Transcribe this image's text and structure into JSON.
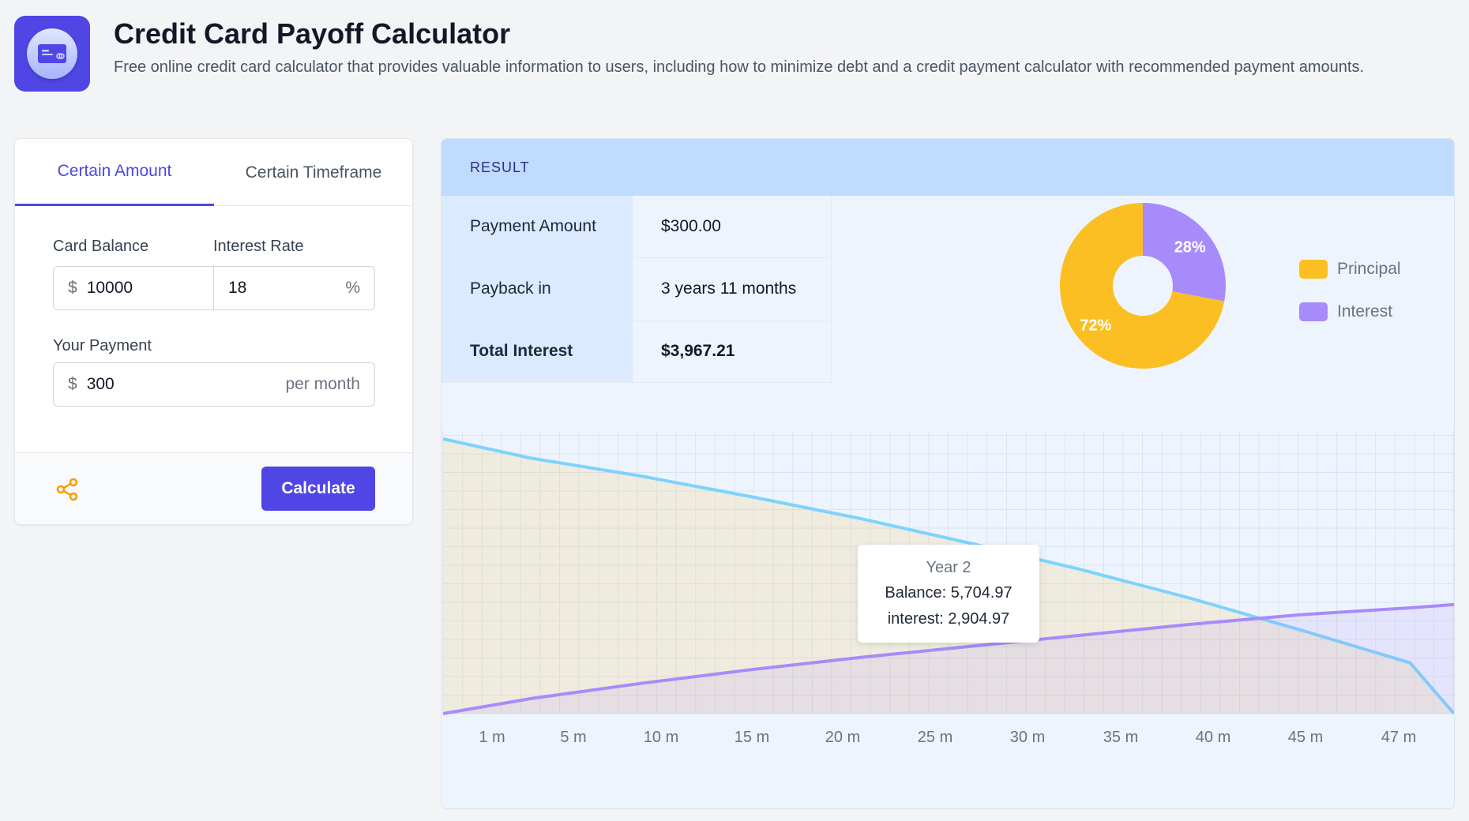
{
  "header": {
    "title": "Credit Card Payoff Calculator",
    "subtitle": "Free online credit card calculator that provides valuable information to users, including how to minimize debt and a credit payment calculator with recommended payment amounts."
  },
  "tabs": [
    {
      "label": "Certain Amount",
      "active": true
    },
    {
      "label": "Certain Timeframe",
      "active": false
    }
  ],
  "form": {
    "card_balance_label": "Card Balance",
    "card_balance_prefix": "$",
    "card_balance_value": "10000",
    "interest_rate_label": "Interest Rate",
    "interest_rate_value": "18",
    "interest_rate_suffix": "%",
    "payment_label": "Your Payment",
    "payment_prefix": "$",
    "payment_value": "300",
    "payment_suffix": "per month",
    "calculate_label": "Calculate"
  },
  "result": {
    "heading": "RESULT",
    "rows": [
      {
        "label": "Payment Amount",
        "value": "$300.00"
      },
      {
        "label": "Payback in",
        "value": "3 years 11 months"
      },
      {
        "label": "Total Interest",
        "value": "$3,967.21"
      }
    ]
  },
  "pie": {
    "slices": [
      {
        "name": "Principal",
        "percent": 72,
        "label": "72%",
        "color": "#fbbf24"
      },
      {
        "name": "Interest",
        "percent": 28,
        "label": "28%",
        "color": "#a78bfa"
      }
    ]
  },
  "legend": [
    {
      "label": "Principal",
      "color": "#fbbf24"
    },
    {
      "label": "Interest",
      "color": "#a78bfa"
    }
  ],
  "tooltip": {
    "title": "Year 2",
    "line1": "Balance: 5,704.97",
    "line2": "interest: 2,904.97"
  },
  "chart_data": {
    "type": "area",
    "x_unit": "months",
    "x": [
      1,
      5,
      10,
      15,
      20,
      25,
      30,
      35,
      40,
      45,
      47
    ],
    "x_tick_labels": [
      "1 m",
      "5 m",
      "10 m",
      "15 m",
      "20 m",
      "25 m",
      "30 m",
      "35 m",
      "40 m",
      "45 m",
      "47 m"
    ],
    "series": [
      {
        "name": "Balance",
        "color": "#7dd3fc",
        "fill": "#fbbf24",
        "values": [
          10000,
          9300,
          8650,
          7900,
          7100,
          6200,
          5250,
          4200,
          3050,
          1850,
          0
        ]
      },
      {
        "name": "interest",
        "color": "#a78bfa",
        "fill": "#a78bfa",
        "values": [
          0,
          550,
          1100,
          1600,
          2050,
          2450,
          2850,
          3250,
          3600,
          3850,
          3967
        ]
      }
    ],
    "ylim": [
      0,
      10000
    ],
    "grid": true
  },
  "colors": {
    "accent": "#4f46e5",
    "share_icon": "#f59e0b"
  }
}
